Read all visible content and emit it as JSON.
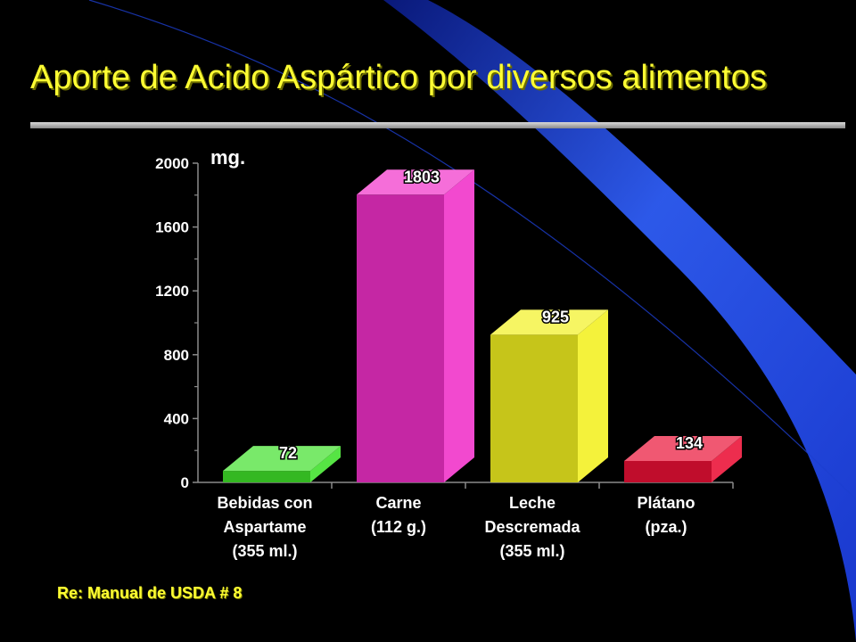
{
  "title": "Aporte de Acido Aspártico por diversos alimentos",
  "footnote": "Re: Manual de USDA # 8",
  "colors": {
    "background": "#000000",
    "title": "#ffff33",
    "accent_swoosh": "#2f5df5"
  },
  "chart_data": {
    "type": "bar",
    "unit_label": "mg.",
    "categories": [
      [
        "Bebidas con",
        "Aspartame",
        "(355 ml.)"
      ],
      [
        "Carne",
        "(112 g.)"
      ],
      [
        "Leche",
        "Descremada",
        "(355 ml.)"
      ],
      [
        "Plátano",
        "(pza.)"
      ]
    ],
    "values": [
      72,
      1803,
      925,
      134
    ],
    "value_labels": [
      "72",
      "1803",
      "925",
      "134"
    ],
    "bar_colors": [
      "#3fe02a",
      "#f030c8",
      "#f2f020",
      "#ea1036"
    ],
    "ylim": [
      0,
      2000
    ],
    "yticks": [
      0,
      400,
      800,
      1200,
      1600,
      2000
    ],
    "ytick_labels": [
      "0",
      "400",
      "800",
      "1200",
      "1600",
      "2000"
    ],
    "minor_ticks": true,
    "grid": false,
    "style": "3d-bar"
  }
}
